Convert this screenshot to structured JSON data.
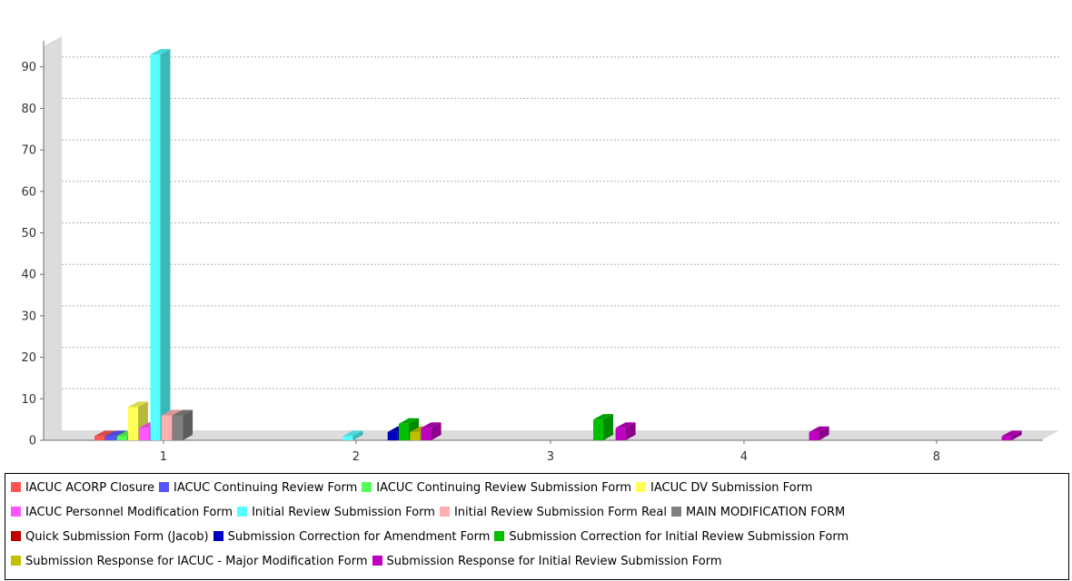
{
  "chart_data": {
    "type": "bar",
    "title": "",
    "xlabel": "",
    "ylabel": "",
    "categories": [
      "1",
      "2",
      "3",
      "4",
      "8"
    ],
    "ylim": [
      0,
      95
    ],
    "yticks": [
      0,
      10,
      20,
      30,
      40,
      50,
      60,
      70,
      80,
      90
    ],
    "grid": true,
    "legend_position": "bottom",
    "series": [
      {
        "name": "IACUC ACORP Closure",
        "color": "#ff5555",
        "values": [
          1,
          0,
          0,
          0,
          0
        ]
      },
      {
        "name": "IACUC Continuing Review Form",
        "color": "#5555ff",
        "values": [
          1,
          0,
          0,
          0,
          0
        ]
      },
      {
        "name": "IACUC Continuing Review Submission Form",
        "color": "#55ff55",
        "values": [
          1,
          0,
          0,
          0,
          0
        ]
      },
      {
        "name": "IACUC DV Submission Form",
        "color": "#ffff55",
        "values": [
          8,
          0,
          0,
          0,
          0
        ]
      },
      {
        "name": "IACUC Personnel Modification Form",
        "color": "#ff55ff",
        "values": [
          3,
          0,
          0,
          0,
          0
        ]
      },
      {
        "name": "Initial Review Submission Form",
        "color": "#55ffff",
        "values": [
          93,
          1,
          0,
          0,
          0
        ]
      },
      {
        "name": "Initial Review Submission Form Real",
        "color": "#ffafaf",
        "values": [
          6,
          0,
          0,
          0,
          0
        ]
      },
      {
        "name": "MAIN MODIFICATION FORM",
        "color": "#808080",
        "values": [
          6,
          0,
          0,
          0,
          0
        ]
      },
      {
        "name": "Quick Submission Form (Jacob)",
        "color": "#c00000",
        "values": [
          0,
          0,
          0,
          0,
          0
        ]
      },
      {
        "name": "Submission Correction for Amendment Form",
        "color": "#0000c0",
        "values": [
          0,
          2,
          0,
          0,
          0
        ]
      },
      {
        "name": "Submission Correction for Initial Review Submission Form",
        "color": "#00c000",
        "values": [
          0,
          4,
          5,
          0,
          0
        ]
      },
      {
        "name": "Submission Response for IACUC - Major Modification Form",
        "color": "#c0c000",
        "values": [
          0,
          2,
          0,
          0,
          0
        ]
      },
      {
        "name": "Submission Response for Initial Review Submission Form",
        "color": "#c000c0",
        "values": [
          0,
          3,
          3,
          2,
          1
        ]
      }
    ]
  }
}
